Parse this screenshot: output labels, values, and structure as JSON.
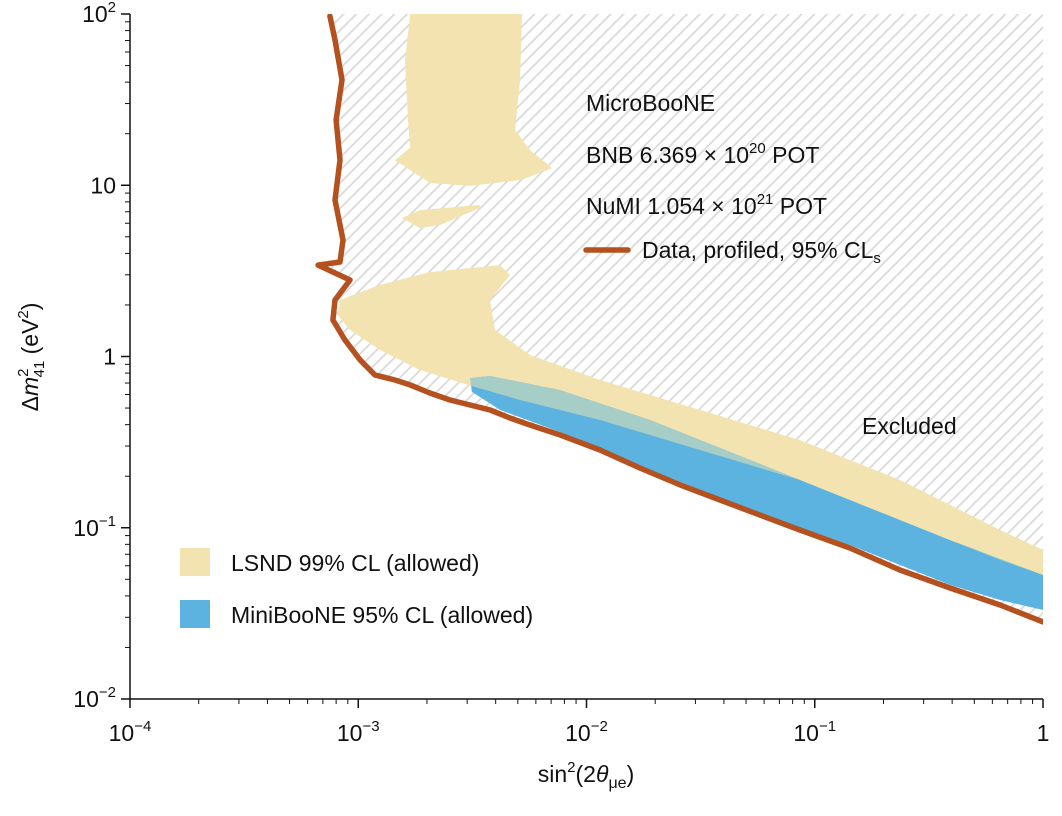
{
  "chart_data": {
    "type": "area",
    "xscale": "log",
    "yscale": "log",
    "xlim": [
      0.0001,
      1
    ],
    "ylim": [
      0.01,
      100
    ],
    "coordinates_note": "polygon and curve points are [log10(sin2 2theta), log10(dm2 eV2)]",
    "xlabel": {
      "pre": "sin",
      "sup": "2",
      "mid": "(2",
      "theta": "θ",
      "sub": "μe",
      "post": ")"
    },
    "ylabel": {
      "delta": "Δ",
      "m": "m",
      "sup": "2",
      "sub": "41",
      "unit_pre": " (eV",
      "unit_sup": "2",
      "unit_post": ")"
    },
    "x_ticks": [
      {
        "value": 0.0001,
        "base": "10",
        "exp": "−4"
      },
      {
        "value": 0.001,
        "base": "10",
        "exp": "−3"
      },
      {
        "value": 0.01,
        "base": "10",
        "exp": "−2"
      },
      {
        "value": 0.1,
        "base": "10",
        "exp": "−1"
      },
      {
        "value": 1,
        "base": "1",
        "exp": ""
      }
    ],
    "y_ticks": [
      {
        "value": 0.01,
        "base": "10",
        "exp": "−2"
      },
      {
        "value": 0.1,
        "base": "10",
        "exp": "−1"
      },
      {
        "value": 1,
        "base": "1",
        "exp": ""
      },
      {
        "value": 10,
        "base": "10",
        "exp": ""
      },
      {
        "value": 100,
        "base": "10",
        "exp": "2"
      }
    ],
    "annotations": {
      "experiment": "MicroBooNE",
      "bnb": {
        "pre": "BNB 6.369 × 10",
        "exp": "20",
        "post": " POT"
      },
      "numi": {
        "pre": "NuMI 1.054 × 10",
        "exp": "21",
        "post": " POT"
      },
      "excluded": "Excluded"
    },
    "colors": {
      "data": "#b5501f",
      "lsnd": "#f2e3b0",
      "miniboone": "#5db3e0",
      "overlap": "#a6cec6",
      "hatch": "#d9d9d9"
    },
    "series": [
      {
        "name": "Data, profiled, 95% CL",
        "name_sub": "s",
        "kind": "curve",
        "points": [
          [
            -3.124,
            1.988
          ],
          [
            -3.102,
            1.848
          ],
          [
            -3.071,
            1.615
          ],
          [
            -3.097,
            1.381
          ],
          [
            -3.08,
            1.147
          ],
          [
            -3.102,
            0.914
          ],
          [
            -3.067,
            0.68
          ],
          [
            -3.08,
            0.552
          ],
          [
            -3.176,
            0.534
          ],
          [
            -3.036,
            0.447
          ],
          [
            -3.102,
            0.33
          ],
          [
            -3.111,
            0.213
          ],
          [
            -3.058,
            0.096
          ],
          [
            -2.992,
            -0.02
          ],
          [
            -2.927,
            -0.108
          ],
          [
            -2.839,
            -0.137
          ],
          [
            -2.773,
            -0.166
          ],
          [
            -2.686,
            -0.213
          ],
          [
            -2.598,
            -0.254
          ],
          [
            -2.51,
            -0.283
          ],
          [
            -2.423,
            -0.312
          ],
          [
            -2.335,
            -0.359
          ],
          [
            -2.248,
            -0.4
          ],
          [
            -2.116,
            -0.458
          ],
          [
            -1.941,
            -0.546
          ],
          [
            -1.766,
            -0.651
          ],
          [
            -1.59,
            -0.75
          ],
          [
            -1.415,
            -0.838
          ],
          [
            -1.24,
            -0.926
          ],
          [
            -1.065,
            -1.013
          ],
          [
            -0.846,
            -1.118
          ],
          [
            -0.627,
            -1.247
          ],
          [
            -0.407,
            -1.352
          ],
          [
            -0.188,
            -1.451
          ],
          [
            0,
            -1.55
          ]
        ]
      },
      {
        "name": "LSND 99% CL (allowed)",
        "kind": "region",
        "polygons": [
          [
            [
              -2.773,
              2
            ],
            [
              -2.283,
              2
            ],
            [
              -2.291,
              1.615
            ],
            [
              -2.313,
              1.323
            ],
            [
              -2.248,
              1.206
            ],
            [
              -2.151,
              1.101
            ],
            [
              -2.283,
              1.031
            ],
            [
              -2.51,
              0.996
            ],
            [
              -2.686,
              1.013
            ],
            [
              -2.839,
              1.147
            ],
            [
              -2.773,
              1.218
            ],
            [
              -2.782,
              1.381
            ],
            [
              -2.795,
              1.731
            ]
          ],
          [
            [
              -2.808,
              0.809
            ],
            [
              -2.73,
              0.855
            ],
            [
              -2.467,
              0.885
            ],
            [
              -2.467,
              0.867
            ],
            [
              -2.642,
              0.768
            ],
            [
              -2.73,
              0.75
            ]
          ],
          [
            [
              -3.08,
              0.33
            ],
            [
              -2.905,
              0.418
            ],
            [
              -2.686,
              0.493
            ],
            [
              -2.379,
              0.534
            ],
            [
              -2.335,
              0.476
            ],
            [
              -2.423,
              0.33
            ],
            [
              -2.401,
              0.155
            ],
            [
              -2.248,
              0.009
            ],
            [
              -1.941,
              -0.137
            ],
            [
              -1.503,
              -0.312
            ],
            [
              -1.065,
              -0.488
            ],
            [
              -0.627,
              -0.721
            ],
            [
              -0.188,
              -1.013
            ],
            [
              0,
              -1.13
            ],
            [
              0,
              -1.276
            ],
            [
              -0.188,
              -1.188
            ],
            [
              -0.627,
              -0.955
            ],
            [
              -1.065,
              -0.721
            ],
            [
              -1.503,
              -0.546
            ],
            [
              -1.941,
              -0.371
            ],
            [
              -2.291,
              -0.254
            ],
            [
              -2.519,
              -0.166
            ],
            [
              -2.73,
              -0.079
            ],
            [
              -2.905,
              0.038
            ],
            [
              -3.036,
              0.155
            ],
            [
              -3.089,
              0.242
            ]
          ]
        ]
      },
      {
        "name": "MiniBooNE 95% CL (allowed)",
        "kind": "region",
        "polygons": [
          [
            [
              -2.51,
              -0.126
            ],
            [
              -2.423,
              -0.114
            ],
            [
              -2.116,
              -0.196
            ],
            [
              -1.722,
              -0.371
            ],
            [
              -1.284,
              -0.604
            ],
            [
              -0.846,
              -0.838
            ],
            [
              -0.407,
              -1.072
            ],
            [
              0,
              -1.276
            ],
            [
              0,
              -1.48
            ],
            [
              -0.188,
              -1.422
            ],
            [
              -0.407,
              -1.334
            ],
            [
              -0.846,
              -1.101
            ],
            [
              -1.284,
              -0.896
            ],
            [
              -1.722,
              -0.663
            ],
            [
              -1.941,
              -0.546
            ],
            [
              -2.116,
              -0.441
            ],
            [
              -2.379,
              -0.312
            ],
            [
              -2.502,
              -0.207
            ]
          ]
        ]
      }
    ]
  }
}
